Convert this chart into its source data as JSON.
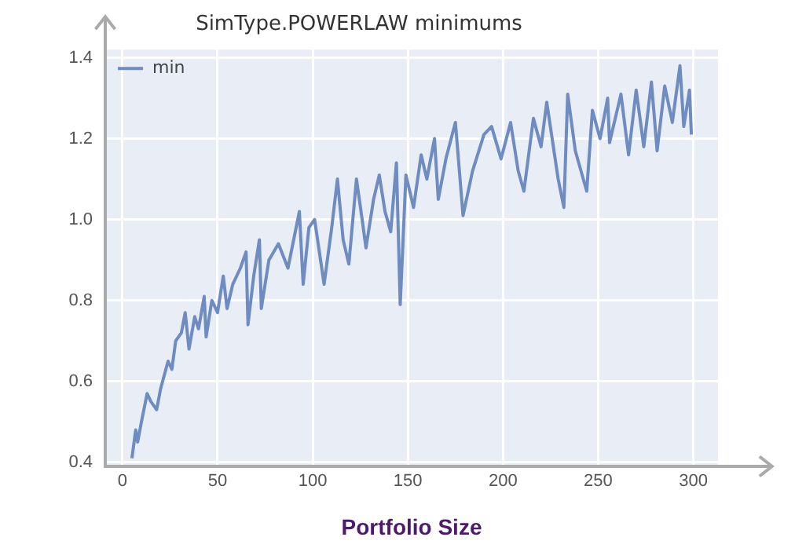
{
  "chart_data": {
    "type": "line",
    "title": "SimType.POWERLAW minimums",
    "xlabel": "Portfolio Size",
    "xlim": [
      -9,
      313
    ],
    "ylim": [
      0.39,
      1.42
    ],
    "xticks": [
      0,
      50,
      100,
      150,
      200,
      250,
      300
    ],
    "yticks": [
      0.4,
      0.6,
      0.8,
      {
        "value": 1,
        "label": "1.0"
      },
      1.2,
      1.4
    ],
    "grid": true,
    "legend": "top left",
    "marker": "none",
    "line_style": "solid",
    "series": [
      {
        "name": "min",
        "color": "#6f8cc0",
        "x": [
          5,
          7,
          8,
          10,
          13,
          15,
          18,
          20,
          24,
          26,
          28,
          31,
          33,
          35,
          38,
          40,
          43,
          44,
          47,
          50,
          53,
          55,
          58,
          62,
          65,
          66,
          69,
          72,
          73,
          77,
          82,
          87,
          93,
          95,
          98,
          101,
          106,
          110,
          113,
          116,
          119,
          123,
          126,
          128,
          132,
          135,
          138,
          141,
          144,
          146,
          149,
          153,
          157,
          160,
          164,
          166,
          170,
          175,
          179,
          184,
          190,
          194,
          199,
          204,
          208,
          211,
          216,
          220,
          223,
          229,
          232,
          234,
          238,
          244,
          247,
          251,
          255,
          256,
          262,
          266,
          270,
          274,
          278,
          281,
          285,
          289,
          293,
          295,
          298,
          299
        ],
        "values": [
          0.41,
          0.48,
          0.45,
          0.5,
          0.57,
          0.55,
          0.53,
          0.58,
          0.65,
          0.63,
          0.7,
          0.72,
          0.77,
          0.68,
          0.76,
          0.73,
          0.81,
          0.71,
          0.8,
          0.77,
          0.86,
          0.78,
          0.84,
          0.88,
          0.92,
          0.74,
          0.86,
          0.95,
          0.78,
          0.9,
          0.94,
          0.88,
          1.02,
          0.84,
          0.98,
          1.0,
          0.84,
          0.98,
          1.1,
          0.95,
          0.89,
          1.1,
          1.0,
          0.93,
          1.05,
          1.11,
          1.02,
          0.97,
          1.14,
          0.79,
          1.11,
          1.03,
          1.16,
          1.1,
          1.2,
          1.05,
          1.15,
          1.24,
          1.01,
          1.12,
          1.21,
          1.23,
          1.15,
          1.24,
          1.12,
          1.07,
          1.25,
          1.18,
          1.29,
          1.1,
          1.03,
          1.31,
          1.17,
          1.07,
          1.27,
          1.2,
          1.3,
          1.19,
          1.31,
          1.16,
          1.32,
          1.18,
          1.34,
          1.17,
          1.33,
          1.24,
          1.38,
          1.23,
          1.32,
          1.21
        ]
      }
    ]
  }
}
